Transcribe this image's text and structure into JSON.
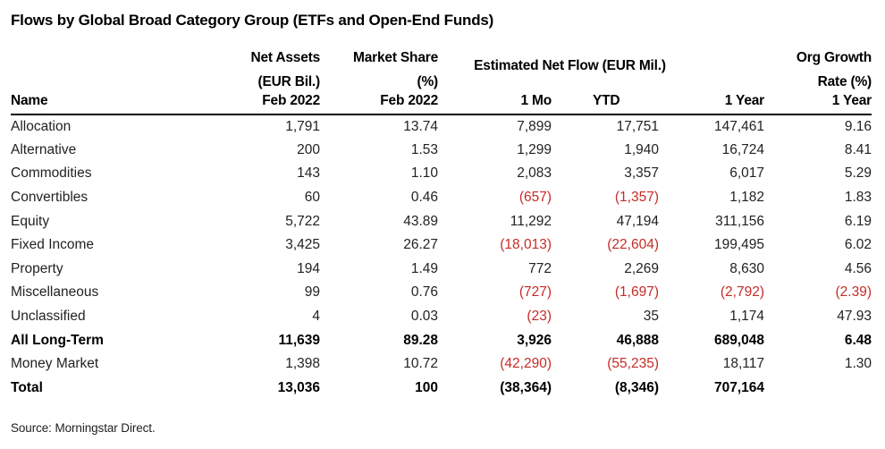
{
  "title": "Flows by Global Broad Category Group (ETFs and Open-End Funds)",
  "columns": {
    "name": "Name",
    "net_assets": [
      "Net Assets",
      "(EUR Bil.)",
      "Feb 2022"
    ],
    "market_share": [
      "Market Share",
      "(%)",
      "Feb 2022"
    ],
    "flow_group": "Estimated Net Flow (EUR Mil.)",
    "flow_1mo": "1 Mo",
    "flow_ytd": "YTD",
    "flow_1year": "1 Year",
    "org_growth": [
      "Org Growth",
      "Rate (%)",
      "1 Year"
    ]
  },
  "rows": [
    {
      "name": "Allocation",
      "bold": false,
      "cells": [
        {
          "v": "1,791"
        },
        {
          "v": "13.74"
        },
        {
          "v": "7,899"
        },
        {
          "v": "17,751"
        },
        {
          "v": "147,461"
        },
        {
          "v": "9.16"
        }
      ]
    },
    {
      "name": "Alternative",
      "bold": false,
      "cells": [
        {
          "v": "200"
        },
        {
          "v": "1.53"
        },
        {
          "v": "1,299"
        },
        {
          "v": "1,940"
        },
        {
          "v": "16,724"
        },
        {
          "v": "8.41"
        }
      ]
    },
    {
      "name": "Commodities",
      "bold": false,
      "cells": [
        {
          "v": "143"
        },
        {
          "v": "1.10"
        },
        {
          "v": "2,083"
        },
        {
          "v": "3,357"
        },
        {
          "v": "6,017"
        },
        {
          "v": "5.29"
        }
      ]
    },
    {
      "name": "Convertibles",
      "bold": false,
      "cells": [
        {
          "v": "60"
        },
        {
          "v": "0.46"
        },
        {
          "v": "(657)",
          "neg": true
        },
        {
          "v": "(1,357)",
          "neg": true
        },
        {
          "v": "1,182"
        },
        {
          "v": "1.83"
        }
      ]
    },
    {
      "name": "Equity",
      "bold": false,
      "cells": [
        {
          "v": "5,722"
        },
        {
          "v": "43.89"
        },
        {
          "v": "11,292"
        },
        {
          "v": "47,194"
        },
        {
          "v": "311,156"
        },
        {
          "v": "6.19"
        }
      ]
    },
    {
      "name": "Fixed Income",
      "bold": false,
      "cells": [
        {
          "v": "3,425"
        },
        {
          "v": "26.27"
        },
        {
          "v": "(18,013)",
          "neg": true
        },
        {
          "v": "(22,604)",
          "neg": true
        },
        {
          "v": "199,495"
        },
        {
          "v": "6.02"
        }
      ]
    },
    {
      "name": "Property",
      "bold": false,
      "cells": [
        {
          "v": "194"
        },
        {
          "v": "1.49"
        },
        {
          "v": "772"
        },
        {
          "v": "2,269"
        },
        {
          "v": "8,630"
        },
        {
          "v": "4.56"
        }
      ]
    },
    {
      "name": "Miscellaneous",
      "bold": false,
      "cells": [
        {
          "v": "99"
        },
        {
          "v": "0.76"
        },
        {
          "v": "(727)",
          "neg": true
        },
        {
          "v": "(1,697)",
          "neg": true
        },
        {
          "v": "(2,792)",
          "neg": true
        },
        {
          "v": "(2.39)",
          "neg": true
        }
      ]
    },
    {
      "name": "Unclassified",
      "bold": false,
      "cells": [
        {
          "v": "4"
        },
        {
          "v": "0.03"
        },
        {
          "v": "(23)",
          "neg": true
        },
        {
          "v": "35"
        },
        {
          "v": "1,174"
        },
        {
          "v": "47.93"
        }
      ]
    },
    {
      "name": "All Long-Term",
      "bold": true,
      "cells": [
        {
          "v": "11,639"
        },
        {
          "v": "89.28"
        },
        {
          "v": "3,926"
        },
        {
          "v": "46,888"
        },
        {
          "v": "689,048"
        },
        {
          "v": "6.48"
        }
      ]
    },
    {
      "name": "Money Market",
      "bold": false,
      "cells": [
        {
          "v": "1,398"
        },
        {
          "v": "10.72"
        },
        {
          "v": "(42,290)",
          "neg": true
        },
        {
          "v": "(55,235)",
          "neg": true
        },
        {
          "v": "18,117"
        },
        {
          "v": "1.30"
        }
      ]
    },
    {
      "name": "Total",
      "bold": true,
      "cells": [
        {
          "v": "13,036"
        },
        {
          "v": "100"
        },
        {
          "v": "(38,364)"
        },
        {
          "v": "(8,346)"
        },
        {
          "v": "707,164"
        },
        {
          "v": ""
        }
      ]
    }
  ],
  "source": "Source: Morningstar Direct.",
  "colors": {
    "negative": "#C62B27",
    "text": "#222222",
    "heading": "#000000",
    "rule": "#000000"
  }
}
